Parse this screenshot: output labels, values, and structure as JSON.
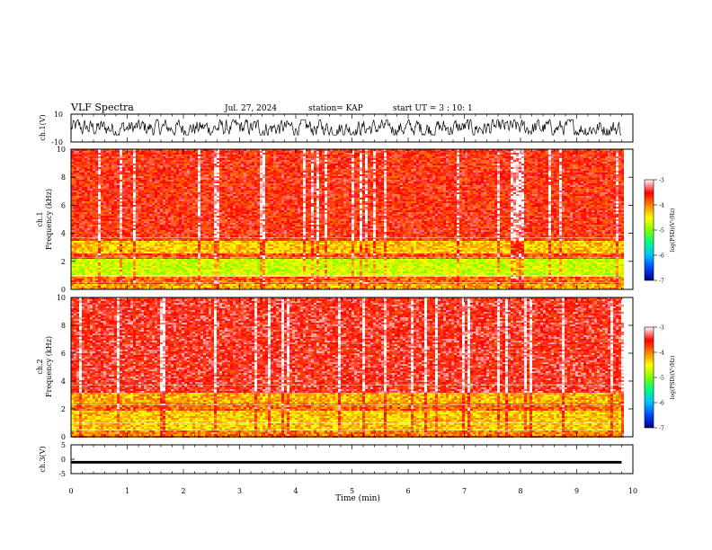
{
  "header": {
    "title": "VLF Spectra",
    "date": "Jul. 27, 2024",
    "station": "station= KAP",
    "start": "start  UT =   3 : 10: 1"
  },
  "colors": {
    "background": "#ffffff",
    "frame": "#000000",
    "waveform": "#000000",
    "colormap": [
      "#000080",
      "#0040ff",
      "#00c0ff",
      "#00ff80",
      "#80ff00",
      "#ffff00",
      "#ff8000",
      "#ff0000",
      "#ffffff"
    ]
  },
  "chart_data": [
    {
      "type": "line",
      "name": "ch1-waveform",
      "ylabel": "ch.1(V)",
      "ylim": [
        -10,
        10
      ],
      "yticks": [
        "10",
        "-10"
      ],
      "xlim": [
        0,
        10
      ],
      "x_end": 9.8,
      "description": "dense noisy waveform spanning roughly -5 to 6 V",
      "amplitude_range": [
        -5,
        6
      ]
    },
    {
      "type": "heatmap",
      "name": "ch1-spectrogram",
      "ylabel": "ch.1\nFrequency (kHz)",
      "ylabel_top": "ch.1",
      "ylabel_bottom": "Frequency (kHz)",
      "ylim": [
        0,
        10
      ],
      "yticks": [
        "0",
        "2",
        "4",
        "6",
        "8",
        "10"
      ],
      "xlim": [
        0,
        10
      ],
      "x_end": 9.8,
      "colorbar": {
        "label": "log(PSD)(V²/Hz)",
        "range": [
          -7,
          -3
        ],
        "ticks": [
          "-3",
          "-4",
          "-5",
          "-6",
          "-7"
        ]
      },
      "bands": [
        {
          "f": [
            0.0,
            0.5
          ],
          "level": -4.2
        },
        {
          "f": [
            0.5,
            1.0
          ],
          "level": -3.9
        },
        {
          "f": [
            1.0,
            2.3
          ],
          "level": -4.7
        },
        {
          "f": [
            2.3,
            2.6
          ],
          "level": -3.8
        },
        {
          "f": [
            2.6,
            3.5
          ],
          "level": -4.3
        },
        {
          "f": [
            3.5,
            10.0
          ],
          "level": -3.6
        }
      ]
    },
    {
      "type": "heatmap",
      "name": "ch2-spectrogram",
      "ylabel": "ch.2\nFrequency (kHz)",
      "ylabel_top": "ch.2",
      "ylabel_bottom": "Frequency (kHz)",
      "ylim": [
        0,
        10
      ],
      "yticks": [
        "0",
        "2",
        "4",
        "6",
        "8",
        "10"
      ],
      "xlim": [
        0,
        10
      ],
      "x_end": 9.8,
      "colorbar": {
        "label": "log(PSD)(V²/Hz)",
        "range": [
          -7,
          -3
        ],
        "ticks": [
          "-3",
          "-4",
          "-5",
          "-6",
          "-7"
        ]
      },
      "bands": [
        {
          "f": [
            0.0,
            0.5
          ],
          "level": -4.0
        },
        {
          "f": [
            0.5,
            2.0
          ],
          "level": -4.3
        },
        {
          "f": [
            2.0,
            2.5
          ],
          "level": -3.9
        },
        {
          "f": [
            2.5,
            3.2
          ],
          "level": -4.2
        },
        {
          "f": [
            3.2,
            10.0
          ],
          "level": -3.5
        }
      ]
    },
    {
      "type": "line",
      "name": "ch3-waveform",
      "ylabel": "ch.3(V)",
      "ylim": [
        -5,
        5
      ],
      "yticks": [
        "5",
        "0",
        "-5"
      ],
      "xlim": [
        0,
        10
      ],
      "x_end": 9.8,
      "description": "thick flat trace around -1 V",
      "amplitude_range": [
        -1.5,
        -0.6
      ],
      "xlabel": "Time (min)",
      "xticks": [
        "0",
        "1",
        "2",
        "3",
        "4",
        "5",
        "6",
        "7",
        "8",
        "9",
        "10"
      ]
    }
  ]
}
